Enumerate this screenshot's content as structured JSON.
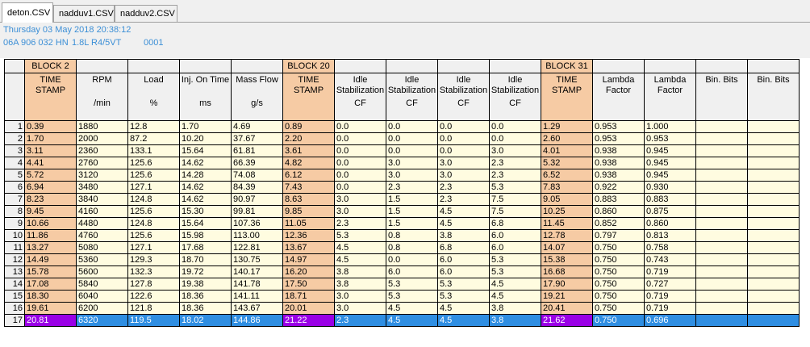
{
  "tabs": [
    {
      "label": "deton.CSV",
      "active": true
    },
    {
      "label": "nadduv1.CSV",
      "active": false
    },
    {
      "label": "nadduv2.CSV",
      "active": false
    }
  ],
  "info": {
    "date_line": "Thursday 03 May 2018 20:38:12",
    "engine_code": "06A 906 032 HN",
    "engine_desc": "1.8L R4/5VT",
    "engine_num": "0001"
  },
  "blocks": [
    "BLOCK 2",
    "BLOCK 20",
    "BLOCK 31"
  ],
  "headers": [
    {
      "name": "TIME STAMP",
      "unit": ""
    },
    {
      "name": "RPM",
      "unit": "/min"
    },
    {
      "name": "Load",
      "unit": "%"
    },
    {
      "name": "Inj. On Time",
      "unit": "ms"
    },
    {
      "name": "Mass Flow",
      "unit": "g/s"
    },
    {
      "name": "TIME STAMP",
      "unit": ""
    },
    {
      "name": "Idle Stabilization",
      "unit": "CF"
    },
    {
      "name": "Idle Stabilization",
      "unit": "CF"
    },
    {
      "name": "Idle Stabilization",
      "unit": "CF"
    },
    {
      "name": "Idle Stabilization",
      "unit": "CF"
    },
    {
      "name": "TIME STAMP",
      "unit": ""
    },
    {
      "name": "Lambda Factor",
      "unit": ""
    },
    {
      "name": "Lambda Factor",
      "unit": ""
    },
    {
      "name": "Bin. Bits",
      "unit": ""
    },
    {
      "name": "Bin. Bits",
      "unit": ""
    }
  ],
  "rows": [
    [
      "1",
      "0.39",
      "1880",
      "12.8",
      "1.70",
      "4.69",
      "0.89",
      "0.0",
      "0.0",
      "0.0",
      "0.0",
      "1.29",
      "0.953",
      "1.000",
      "",
      ""
    ],
    [
      "2",
      "1.70",
      "2000",
      "87.2",
      "10.20",
      "37.67",
      "2.20",
      "0.0",
      "0.0",
      "0.0",
      "0.0",
      "2.60",
      "0.953",
      "0.953",
      "",
      ""
    ],
    [
      "3",
      "3.11",
      "2360",
      "133.1",
      "15.64",
      "61.81",
      "3.61",
      "0.0",
      "0.0",
      "0.0",
      "3.0",
      "4.01",
      "0.938",
      "0.945",
      "",
      ""
    ],
    [
      "4",
      "4.41",
      "2760",
      "125.6",
      "14.62",
      "66.39",
      "4.82",
      "0.0",
      "3.0",
      "3.0",
      "2.3",
      "5.32",
      "0.938",
      "0.945",
      "",
      ""
    ],
    [
      "5",
      "5.72",
      "3120",
      "125.6",
      "14.28",
      "74.08",
      "6.12",
      "0.0",
      "3.0",
      "3.0",
      "2.3",
      "6.52",
      "0.938",
      "0.945",
      "",
      ""
    ],
    [
      "6",
      "6.94",
      "3480",
      "127.1",
      "14.62",
      "84.39",
      "7.43",
      "0.0",
      "2.3",
      "2.3",
      "5.3",
      "7.83",
      "0.922",
      "0.930",
      "",
      ""
    ],
    [
      "7",
      "8.23",
      "3840",
      "124.8",
      "14.62",
      "90.97",
      "8.63",
      "3.0",
      "1.5",
      "2.3",
      "7.5",
      "9.05",
      "0.883",
      "0.883",
      "",
      ""
    ],
    [
      "8",
      "9.45",
      "4160",
      "125.6",
      "15.30",
      "99.81",
      "9.85",
      "3.0",
      "1.5",
      "4.5",
      "7.5",
      "10.25",
      "0.860",
      "0.875",
      "",
      ""
    ],
    [
      "9",
      "10.66",
      "4480",
      "124.8",
      "15.64",
      "107.36",
      "11.05",
      "2.3",
      "1.5",
      "4.5",
      "6.8",
      "11.45",
      "0.852",
      "0.860",
      "",
      ""
    ],
    [
      "10",
      "11.86",
      "4760",
      "125.6",
      "15.98",
      "113.00",
      "12.36",
      "5.3",
      "0.8",
      "3.8",
      "6.0",
      "12.78",
      "0.797",
      "0.813",
      "",
      ""
    ],
    [
      "11",
      "13.27",
      "5080",
      "127.1",
      "17.68",
      "122.81",
      "13.67",
      "4.5",
      "0.8",
      "6.8",
      "6.0",
      "14.07",
      "0.750",
      "0.758",
      "",
      ""
    ],
    [
      "12",
      "14.49",
      "5360",
      "129.3",
      "18.70",
      "130.75",
      "14.97",
      "4.5",
      "0.0",
      "6.0",
      "5.3",
      "15.38",
      "0.750",
      "0.743",
      "",
      ""
    ],
    [
      "13",
      "15.78",
      "5600",
      "132.3",
      "19.72",
      "140.17",
      "16.20",
      "3.8",
      "6.0",
      "6.0",
      "5.3",
      "16.68",
      "0.750",
      "0.719",
      "",
      ""
    ],
    [
      "14",
      "17.08",
      "5840",
      "127.8",
      "19.38",
      "141.78",
      "17.50",
      "3.8",
      "5.3",
      "5.3",
      "4.5",
      "17.90",
      "0.750",
      "0.727",
      "",
      ""
    ],
    [
      "15",
      "18.30",
      "6040",
      "122.6",
      "18.36",
      "141.11",
      "18.71",
      "3.0",
      "5.3",
      "5.3",
      "4.5",
      "19.21",
      "0.750",
      "0.719",
      "",
      ""
    ],
    [
      "16",
      "19.61",
      "6200",
      "121.8",
      "18.36",
      "143.67",
      "20.01",
      "3.0",
      "4.5",
      "4.5",
      "3.8",
      "20.41",
      "0.750",
      "0.719",
      "",
      ""
    ],
    [
      "17",
      "20.81",
      "6320",
      "119.5",
      "18.02",
      "144.86",
      "21.22",
      "2.3",
      "4.5",
      "4.5",
      "3.8",
      "21.62",
      "0.750",
      "0.696",
      "",
      ""
    ]
  ],
  "selected_row": 17,
  "colors": {
    "timestamp_bg": "#f6cba4",
    "data_bg": "#fffce0",
    "selection_bg": "#2f8ee2",
    "selection_timestamp_bg": "#9a00e6",
    "info_text": "#3c8fd6"
  }
}
